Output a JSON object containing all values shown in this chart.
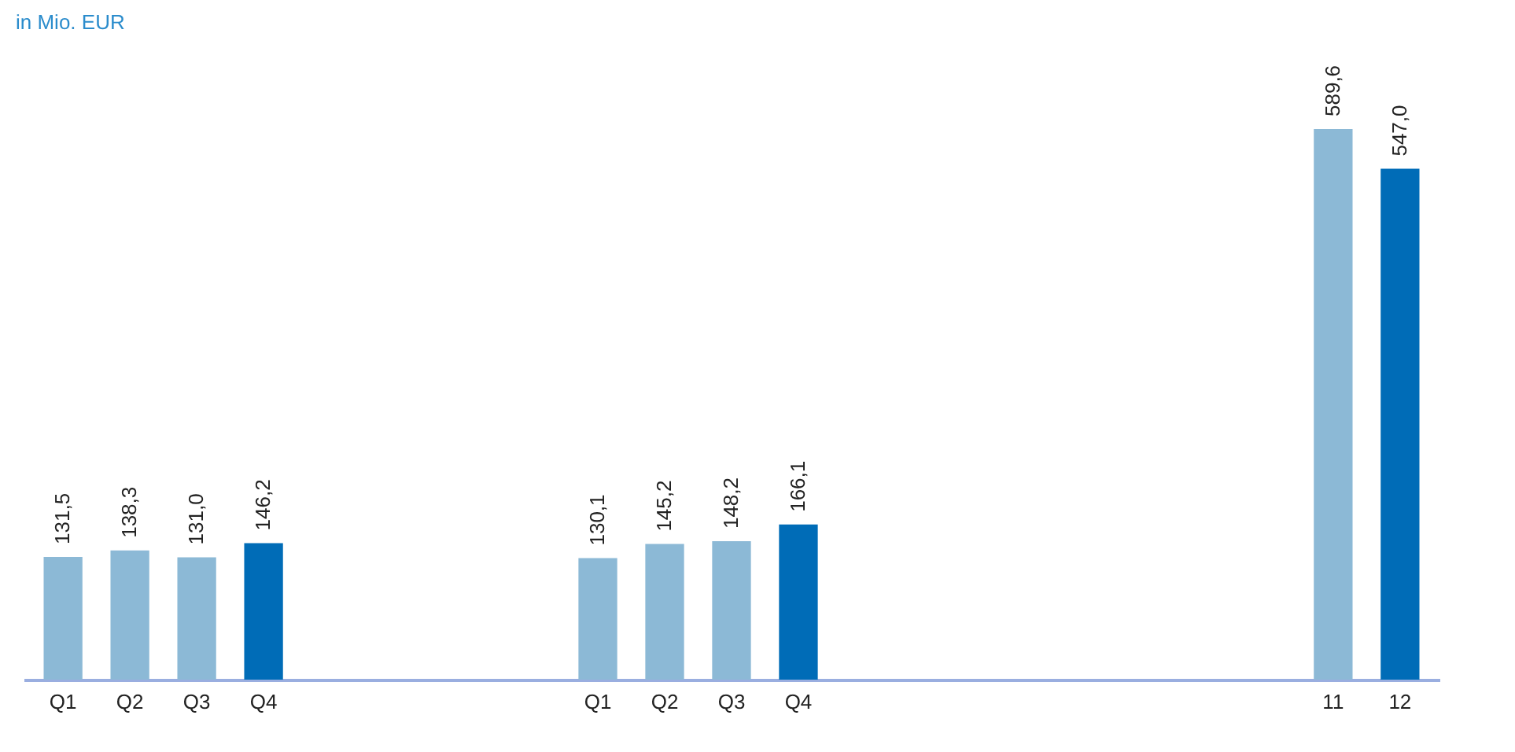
{
  "chart_data": {
    "type": "bar",
    "ylabel": "in Mio. EUR",
    "categories": [
      "Q1",
      "Q2",
      "Q3",
      "Q4",
      null,
      null,
      null,
      null,
      "Q1",
      "Q2",
      "Q3",
      "Q4",
      null,
      null,
      null,
      null,
      null,
      null,
      null,
      "11",
      "12"
    ],
    "values": [
      131.5,
      138.3,
      131.0,
      146.2,
      null,
      null,
      null,
      null,
      130.1,
      145.2,
      148.2,
      166.1,
      null,
      null,
      null,
      null,
      null,
      null,
      null,
      589.6,
      547.0
    ],
    "colors": [
      "#8cb9d6",
      "#8cb9d6",
      "#8cb9d6",
      "#006cb7",
      null,
      null,
      null,
      null,
      "#8cb9d6",
      "#8cb9d6",
      "#8cb9d6",
      "#006cb7",
      null,
      null,
      null,
      null,
      null,
      null,
      null,
      "#8cb9d6",
      "#006cb7"
    ],
    "value_labels": [
      "131,5",
      "138,3",
      "131,0",
      "146,2",
      null,
      null,
      null,
      null,
      "130,1",
      "145,2",
      "148,2",
      "166,1",
      null,
      null,
      null,
      null,
      null,
      null,
      null,
      "589,6",
      "547,0"
    ],
    "grid": false
  }
}
